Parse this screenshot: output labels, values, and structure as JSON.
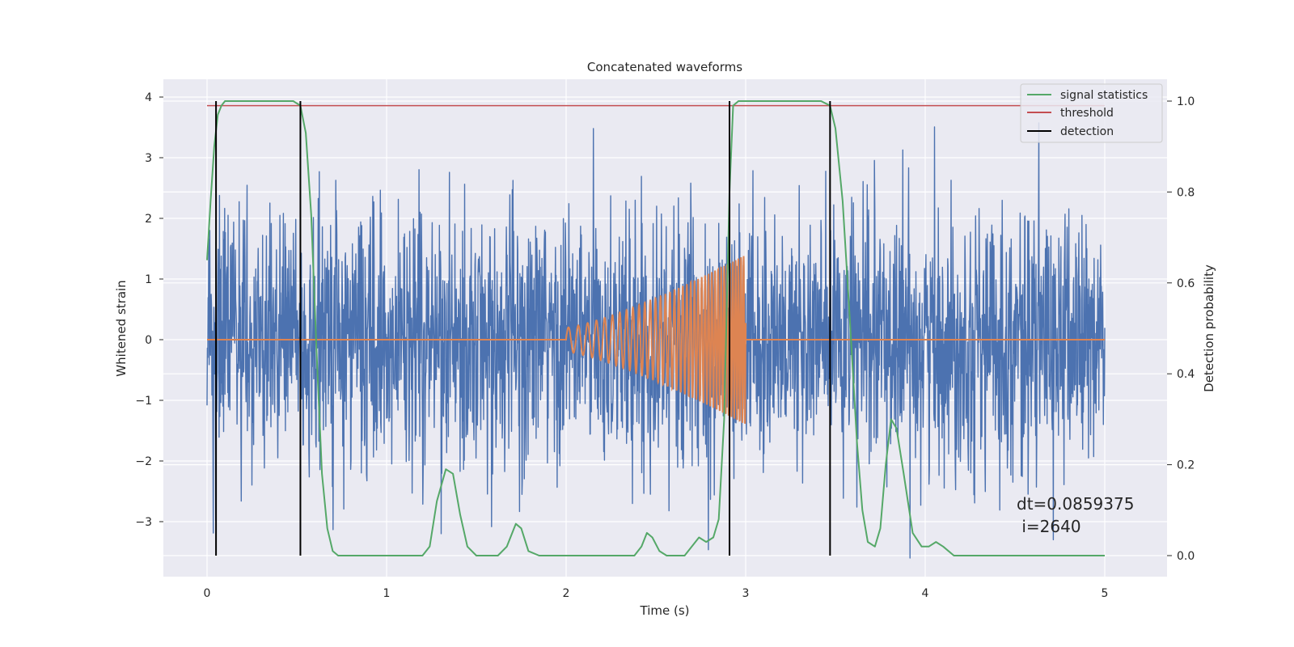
{
  "chart_data": {
    "type": "line",
    "title": "Concatenated waveforms",
    "xlabel": "Time (s)",
    "ylabel": "Whitened strain",
    "y2label": "Detection probability",
    "xlim": [
      -0.25,
      5.25
    ],
    "ylim": [
      -3.9,
      4.3
    ],
    "y2lim": [
      -0.04,
      1.04
    ],
    "x_ticks": [
      "0",
      "1",
      "2",
      "3",
      "4",
      "5"
    ],
    "y_ticks": [
      "4",
      "3",
      "2",
      "1",
      "0",
      "−1",
      "−2",
      "−3"
    ],
    "y_tick_values": [
      4,
      3,
      2,
      1,
      0,
      -1,
      -2,
      -3
    ],
    "y2_ticks": [
      "1.0",
      "0.8",
      "0.6",
      "0.4",
      "0.2",
      "0.0"
    ],
    "y2_tick_values": [
      1.0,
      0.8,
      0.6,
      0.4,
      0.2,
      0.0
    ],
    "grid": true,
    "legend_position": "top-right",
    "legend": [
      "signal statistics",
      "threshold",
      "detection"
    ],
    "annotation": [
      "dt=0.0859375",
      " i=2640"
    ],
    "colors": {
      "background": "#eaeaf2",
      "noise": "#4c72b0",
      "injection": "#dd8452",
      "signal_statistics": "#55a868",
      "threshold": "#c44e52",
      "detection": "#000000"
    },
    "series": [
      {
        "name": "noise",
        "axis": "left",
        "description_values": {
          "x_start": 0,
          "x_end": 5,
          "typical_range": [
            -2.3,
            2.4
          ],
          "peak_range": [
            -3.6,
            3.7
          ]
        }
      },
      {
        "name": "injection",
        "axis": "left",
        "chirp": {
          "x_start": 2.0,
          "x_end": 3.0,
          "amp_start": 0.2,
          "amp_end": 1.4,
          "freq_start_hz": 18,
          "freq_end_hz": 70
        },
        "zero_elsewhere": true
      },
      {
        "name": "signal statistics",
        "axis": "right",
        "points": [
          [
            0.0,
            0.65
          ],
          [
            0.02,
            0.78
          ],
          [
            0.04,
            0.9
          ],
          [
            0.06,
            0.97
          ],
          [
            0.08,
            0.99
          ],
          [
            0.1,
            1.0
          ],
          [
            0.3,
            1.0
          ],
          [
            0.48,
            1.0
          ],
          [
            0.52,
            0.99
          ],
          [
            0.55,
            0.93
          ],
          [
            0.58,
            0.75
          ],
          [
            0.61,
            0.45
          ],
          [
            0.64,
            0.18
          ],
          [
            0.67,
            0.06
          ],
          [
            0.7,
            0.01
          ],
          [
            0.73,
            0.0
          ],
          [
            1.2,
            0.0
          ],
          [
            1.24,
            0.02
          ],
          [
            1.28,
            0.12
          ],
          [
            1.33,
            0.19
          ],
          [
            1.37,
            0.18
          ],
          [
            1.41,
            0.09
          ],
          [
            1.45,
            0.02
          ],
          [
            1.5,
            0.0
          ],
          [
            1.62,
            0.0
          ],
          [
            1.67,
            0.02
          ],
          [
            1.72,
            0.07
          ],
          [
            1.75,
            0.06
          ],
          [
            1.79,
            0.01
          ],
          [
            1.85,
            0.0
          ],
          [
            2.38,
            0.0
          ],
          [
            2.42,
            0.02
          ],
          [
            2.45,
            0.05
          ],
          [
            2.48,
            0.04
          ],
          [
            2.52,
            0.01
          ],
          [
            2.56,
            0.0
          ],
          [
            2.66,
            0.0
          ],
          [
            2.7,
            0.02
          ],
          [
            2.74,
            0.04
          ],
          [
            2.78,
            0.03
          ],
          [
            2.82,
            0.04
          ],
          [
            2.85,
            0.08
          ],
          [
            2.88,
            0.3
          ],
          [
            2.91,
            0.8
          ],
          [
            2.93,
            0.99
          ],
          [
            2.96,
            1.0
          ],
          [
            3.42,
            1.0
          ],
          [
            3.47,
            0.99
          ],
          [
            3.5,
            0.94
          ],
          [
            3.54,
            0.78
          ],
          [
            3.58,
            0.52
          ],
          [
            3.62,
            0.25
          ],
          [
            3.65,
            0.1
          ],
          [
            3.68,
            0.03
          ],
          [
            3.72,
            0.02
          ],
          [
            3.75,
            0.06
          ],
          [
            3.78,
            0.2
          ],
          [
            3.81,
            0.3
          ],
          [
            3.84,
            0.28
          ],
          [
            3.88,
            0.18
          ],
          [
            3.93,
            0.05
          ],
          [
            3.98,
            0.02
          ],
          [
            4.02,
            0.02
          ],
          [
            4.06,
            0.03
          ],
          [
            4.1,
            0.02
          ],
          [
            4.16,
            0.0
          ],
          [
            5.0,
            0.0
          ]
        ]
      },
      {
        "name": "threshold",
        "axis": "right",
        "points": [
          [
            0.0,
            0.99
          ],
          [
            5.0,
            0.99
          ]
        ]
      },
      {
        "name": "detection",
        "axis": "right",
        "vlines": [
          0.05,
          0.52,
          2.91,
          3.47
        ],
        "ymin": 0.0,
        "ymax": 1.0
      }
    ]
  }
}
